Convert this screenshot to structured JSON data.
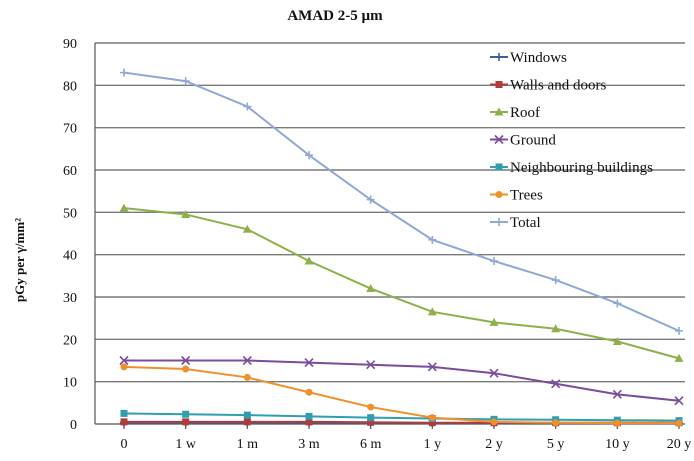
{
  "chart_data": {
    "type": "line",
    "title": "AMAD 2-5 µm",
    "xlabel": "",
    "ylabel": "pGy per γ/mm²",
    "categories": [
      "0",
      "1 w",
      "1 m",
      "3 m",
      "6 m",
      "1 y",
      "2 y",
      "5 y",
      "10 y",
      "20 y"
    ],
    "ylim": [
      0,
      90
    ],
    "yticks": [
      0,
      10,
      20,
      30,
      40,
      50,
      60,
      70,
      80,
      90
    ],
    "grid": true,
    "legend_position": "top-right",
    "series": [
      {
        "name": "Windows",
        "color": "#3a5f9a",
        "marker": "plus",
        "values": [
          0.3,
          0.3,
          0.3,
          0.3,
          0.3,
          0.2,
          0.2,
          0.2,
          0.2,
          0.2
        ]
      },
      {
        "name": "Walls and doors",
        "color": "#b23a3a",
        "marker": "square",
        "values": [
          0.5,
          0.5,
          0.5,
          0.5,
          0.4,
          0.3,
          0.3,
          0.3,
          0.3,
          0.3
        ]
      },
      {
        "name": "Roof",
        "color": "#8db04a",
        "marker": "triangle",
        "values": [
          51,
          49.5,
          46,
          38.5,
          32,
          26.5,
          24,
          22.5,
          19.5,
          15.5
        ]
      },
      {
        "name": "Ground",
        "color": "#7a4c9c",
        "marker": "x",
        "values": [
          15,
          15,
          15,
          14.5,
          14,
          13.5,
          12,
          9.5,
          7,
          5.5
        ]
      },
      {
        "name": "Neighbouring buildings",
        "color": "#2f9fb0",
        "marker": "square",
        "values": [
          2.5,
          2.3,
          2.1,
          1.8,
          1.5,
          1.3,
          1.1,
          1.0,
          0.9,
          0.8
        ]
      },
      {
        "name": "Trees",
        "color": "#f0902a",
        "marker": "circle",
        "values": [
          13.5,
          13,
          11,
          7.5,
          4,
          1.5,
          0.5,
          0.3,
          0.2,
          0.2
        ]
      },
      {
        "name": "Total",
        "color": "#8fa8d6",
        "marker": "plus",
        "values": [
          83,
          81,
          75,
          63.5,
          53,
          43.5,
          38.5,
          34,
          28.5,
          22
        ]
      }
    ]
  }
}
